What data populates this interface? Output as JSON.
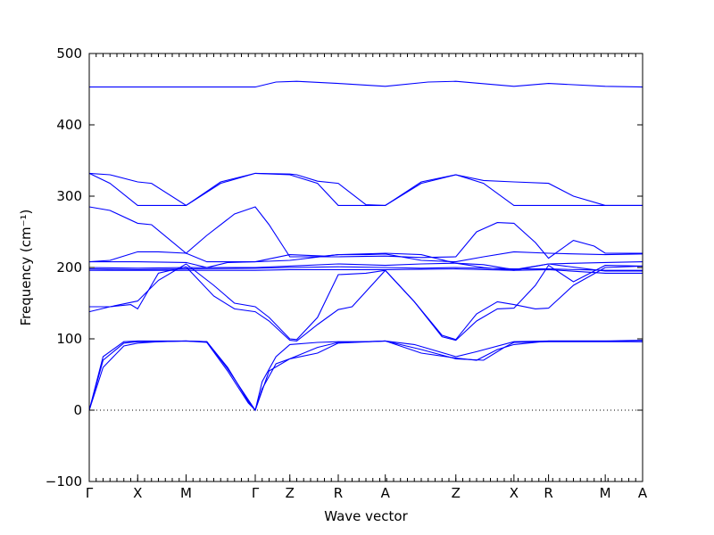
{
  "chart_data": {
    "type": "line",
    "xlabel": "Wave vector",
    "ylabel": "Frequency (cm⁻¹)",
    "ylim": [
      -100,
      500
    ],
    "yticks": [
      -100,
      0,
      100,
      200,
      300,
      400,
      500
    ],
    "xlim": [
      0,
      800
    ],
    "kpoints": [
      {
        "label": "Γ",
        "x": 0
      },
      {
        "label": "X",
        "x": 70
      },
      {
        "label": "M",
        "x": 140
      },
      {
        "label": "Γ",
        "x": 240
      },
      {
        "label": "Z",
        "x": 290
      },
      {
        "label": "R",
        "x": 360
      },
      {
        "label": "A",
        "x": 428
      },
      {
        "label": "Z",
        "x": 530
      },
      {
        "label": "X",
        "x": 614
      },
      {
        "label": "R",
        "x": 664
      },
      {
        "label": "M",
        "x": 746
      },
      {
        "label": "A",
        "x": 800
      }
    ],
    "zero_line": true,
    "color": "#0000ff",
    "series": [
      {
        "values": [
          [
            0,
            453
          ],
          [
            240,
            453
          ],
          [
            270,
            460
          ],
          [
            300,
            461
          ],
          [
            360,
            458
          ],
          [
            428,
            454
          ],
          [
            490,
            460
          ],
          [
            530,
            461
          ],
          [
            614,
            454
          ],
          [
            664,
            458
          ],
          [
            746,
            454
          ],
          [
            800,
            453
          ]
        ]
      },
      {
        "values": [
          [
            0,
            332
          ],
          [
            30,
            330
          ],
          [
            70,
            320
          ],
          [
            90,
            318
          ],
          [
            140,
            287
          ],
          [
            190,
            320
          ],
          [
            240,
            332
          ],
          [
            290,
            331
          ],
          [
            300,
            330
          ],
          [
            330,
            321
          ],
          [
            360,
            318
          ],
          [
            400,
            288
          ],
          [
            428,
            287
          ],
          [
            480,
            320
          ],
          [
            530,
            330
          ],
          [
            570,
            322
          ],
          [
            614,
            320
          ],
          [
            664,
            318
          ],
          [
            700,
            300
          ],
          [
            746,
            287
          ],
          [
            800,
            287
          ]
        ]
      },
      {
        "values": [
          [
            0,
            332
          ],
          [
            30,
            318
          ],
          [
            70,
            287
          ],
          [
            140,
            287
          ],
          [
            190,
            318
          ],
          [
            240,
            332
          ],
          [
            290,
            330
          ],
          [
            330,
            318
          ],
          [
            360,
            287
          ],
          [
            428,
            287
          ],
          [
            480,
            318
          ],
          [
            530,
            330
          ],
          [
            570,
            318
          ],
          [
            614,
            287
          ],
          [
            664,
            287
          ],
          [
            746,
            287
          ],
          [
            800,
            287
          ]
        ]
      },
      {
        "values": [
          [
            0,
            285
          ],
          [
            30,
            280
          ],
          [
            70,
            262
          ],
          [
            90,
            260
          ],
          [
            140,
            220
          ],
          [
            170,
            245
          ],
          [
            210,
            275
          ],
          [
            240,
            285
          ],
          [
            260,
            260
          ],
          [
            290,
            215
          ],
          [
            360,
            215
          ],
          [
            428,
            216
          ],
          [
            480,
            214
          ],
          [
            530,
            215
          ],
          [
            560,
            250
          ],
          [
            590,
            263
          ],
          [
            614,
            262
          ],
          [
            645,
            235
          ],
          [
            664,
            213
          ],
          [
            700,
            238
          ],
          [
            730,
            230
          ],
          [
            746,
            220
          ],
          [
            800,
            220
          ]
        ]
      },
      {
        "values": [
          [
            0,
            208
          ],
          [
            30,
            210
          ],
          [
            70,
            222
          ],
          [
            100,
            222
          ],
          [
            140,
            220
          ],
          [
            170,
            208
          ],
          [
            240,
            208
          ],
          [
            290,
            218
          ],
          [
            340,
            216
          ],
          [
            360,
            218
          ],
          [
            400,
            218
          ],
          [
            428,
            219
          ],
          [
            480,
            210
          ],
          [
            530,
            208
          ],
          [
            570,
            215
          ],
          [
            614,
            222
          ],
          [
            664,
            220
          ],
          [
            746,
            218
          ],
          [
            800,
            219
          ]
        ]
      },
      {
        "values": [
          [
            0,
            208
          ],
          [
            30,
            208
          ],
          [
            70,
            208
          ],
          [
            140,
            207
          ],
          [
            170,
            200
          ],
          [
            200,
            207
          ],
          [
            240,
            208
          ],
          [
            290,
            210
          ],
          [
            360,
            218
          ],
          [
            428,
            220
          ],
          [
            480,
            218
          ],
          [
            530,
            206
          ],
          [
            570,
            200
          ],
          [
            614,
            196
          ],
          [
            664,
            205
          ],
          [
            746,
            207
          ],
          [
            800,
            208
          ]
        ]
      },
      {
        "values": [
          [
            0,
            200
          ],
          [
            70,
            199
          ],
          [
            140,
            200
          ],
          [
            240,
            200
          ],
          [
            290,
            202
          ],
          [
            360,
            205
          ],
          [
            428,
            203
          ],
          [
            480,
            205
          ],
          [
            530,
            206
          ],
          [
            570,
            204
          ],
          [
            614,
            197
          ],
          [
            664,
            205
          ],
          [
            720,
            198
          ],
          [
            746,
            195
          ],
          [
            800,
            195
          ]
        ]
      },
      {
        "values": [
          [
            0,
            198
          ],
          [
            70,
            197
          ],
          [
            140,
            198
          ],
          [
            240,
            199
          ],
          [
            290,
            200
          ],
          [
            360,
            201
          ],
          [
            428,
            200
          ],
          [
            480,
            199
          ],
          [
            530,
            200
          ],
          [
            614,
            198
          ],
          [
            664,
            198
          ],
          [
            746,
            196
          ],
          [
            800,
            196
          ]
        ]
      },
      {
        "values": [
          [
            0,
            196
          ],
          [
            70,
            196
          ],
          [
            140,
            196
          ],
          [
            240,
            196
          ],
          [
            290,
            197
          ],
          [
            360,
            197
          ],
          [
            428,
            197
          ],
          [
            530,
            198
          ],
          [
            614,
            196
          ],
          [
            664,
            197
          ],
          [
            746,
            192
          ],
          [
            800,
            192
          ]
        ]
      },
      {
        "values": [
          [
            0,
            145
          ],
          [
            30,
            145
          ],
          [
            70,
            153
          ],
          [
            100,
            182
          ],
          [
            140,
            205
          ],
          [
            180,
            175
          ],
          [
            210,
            150
          ],
          [
            240,
            145
          ],
          [
            260,
            130
          ],
          [
            290,
            100
          ],
          [
            300,
            99
          ],
          [
            330,
            130
          ],
          [
            360,
            190
          ],
          [
            400,
            192
          ],
          [
            428,
            196
          ],
          [
            470,
            152
          ],
          [
            510,
            105
          ],
          [
            530,
            99
          ],
          [
            560,
            135
          ],
          [
            590,
            152
          ],
          [
            614,
            148
          ],
          [
            645,
            142
          ],
          [
            664,
            143
          ],
          [
            700,
            175
          ],
          [
            746,
            200
          ],
          [
            800,
            202
          ]
        ]
      },
      {
        "values": [
          [
            0,
            138
          ],
          [
            30,
            145
          ],
          [
            60,
            148
          ],
          [
            70,
            142
          ],
          [
            100,
            192
          ],
          [
            140,
            201
          ],
          [
            180,
            160
          ],
          [
            210,
            142
          ],
          [
            240,
            138
          ],
          [
            260,
            125
          ],
          [
            290,
            98
          ],
          [
            300,
            97
          ],
          [
            330,
            120
          ],
          [
            360,
            141
          ],
          [
            380,
            145
          ],
          [
            428,
            196
          ],
          [
            470,
            152
          ],
          [
            510,
            103
          ],
          [
            530,
            98
          ],
          [
            560,
            125
          ],
          [
            590,
            142
          ],
          [
            614,
            143
          ],
          [
            645,
            175
          ],
          [
            664,
            203
          ],
          [
            700,
            180
          ],
          [
            746,
            203
          ],
          [
            800,
            202
          ]
        ]
      },
      {
        "values": [
          [
            0,
            0
          ],
          [
            20,
            60
          ],
          [
            50,
            90
          ],
          [
            70,
            94
          ],
          [
            100,
            96
          ],
          [
            140,
            97
          ],
          [
            170,
            96
          ],
          [
            200,
            60
          ],
          [
            230,
            12
          ],
          [
            240,
            0
          ],
          [
            250,
            40
          ],
          [
            270,
            75
          ],
          [
            290,
            92
          ],
          [
            330,
            95
          ],
          [
            360,
            96
          ],
          [
            400,
            96
          ],
          [
            428,
            97
          ],
          [
            480,
            80
          ],
          [
            530,
            73
          ],
          [
            560,
            70
          ],
          [
            590,
            85
          ],
          [
            614,
            92
          ],
          [
            664,
            97
          ],
          [
            746,
            97
          ],
          [
            800,
            98
          ]
        ]
      },
      {
        "values": [
          [
            0,
            0
          ],
          [
            20,
            70
          ],
          [
            50,
            94
          ],
          [
            70,
            96
          ],
          [
            100,
            96
          ],
          [
            140,
            97
          ],
          [
            170,
            95
          ],
          [
            200,
            55
          ],
          [
            230,
            10
          ],
          [
            240,
            0
          ],
          [
            250,
            30
          ],
          [
            270,
            65
          ],
          [
            290,
            72
          ],
          [
            330,
            88
          ],
          [
            360,
            95
          ],
          [
            400,
            96
          ],
          [
            428,
            97
          ],
          [
            480,
            85
          ],
          [
            530,
            72
          ],
          [
            570,
            70
          ],
          [
            600,
            88
          ],
          [
            614,
            95
          ],
          [
            664,
            96
          ],
          [
            746,
            96
          ],
          [
            800,
            96
          ]
        ]
      },
      {
        "values": [
          [
            0,
            0
          ],
          [
            20,
            75
          ],
          [
            50,
            96
          ],
          [
            70,
            97
          ],
          [
            140,
            97
          ],
          [
            170,
            96
          ],
          [
            200,
            58
          ],
          [
            240,
            0
          ],
          [
            260,
            55
          ],
          [
            290,
            72
          ],
          [
            330,
            80
          ],
          [
            360,
            94
          ],
          [
            428,
            97
          ],
          [
            470,
            92
          ],
          [
            530,
            75
          ],
          [
            560,
            82
          ],
          [
            614,
            96
          ],
          [
            664,
            97
          ],
          [
            746,
            97
          ],
          [
            800,
            96
          ]
        ]
      }
    ]
  }
}
